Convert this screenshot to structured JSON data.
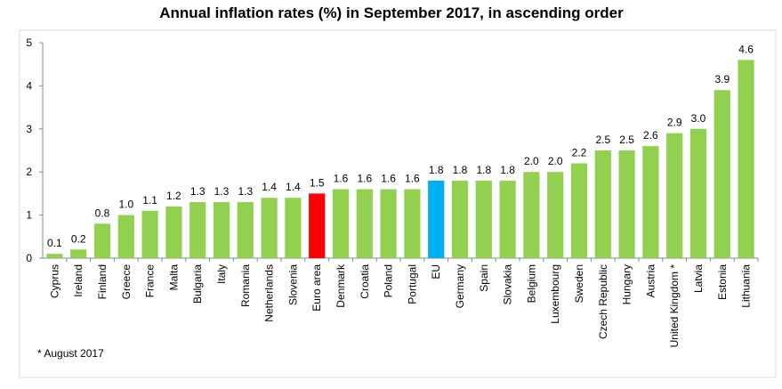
{
  "chart_data": {
    "type": "bar",
    "title": "Annual inflation rates (%) in September 2017, in ascending order",
    "categories": [
      "Cyprus",
      "Ireland",
      "Finland",
      "Greece",
      "France",
      "Malta",
      "Bulgaria",
      "Italy",
      "Romania",
      "Netherlands",
      "Slovenia",
      "Euro area",
      "Denmark",
      "Croatia",
      "Poland",
      "Portugal",
      "EU",
      "Germany",
      "Spain",
      "Slovakia",
      "Belgium",
      "Luxembourg",
      "Sweden",
      "Czech Republic",
      "Hungary",
      "Austria",
      "United Kingdom *",
      "Latvia",
      "Estonia",
      "Lithuania"
    ],
    "values": [
      0.1,
      0.2,
      0.8,
      1.0,
      1.1,
      1.2,
      1.3,
      1.3,
      1.3,
      1.4,
      1.4,
      1.5,
      1.6,
      1.6,
      1.6,
      1.6,
      1.8,
      1.8,
      1.8,
      1.8,
      2.0,
      2.0,
      2.2,
      2.5,
      2.5,
      2.6,
      2.9,
      3.0,
      3.9,
      4.6
    ],
    "value_labels": [
      "0.1",
      "0.2",
      "0.8",
      "1.0",
      "1.1",
      "1.2",
      "1.3",
      "1.3",
      "1.3",
      "1.4",
      "1.4",
      "1.5",
      "1.6",
      "1.6",
      "1.6",
      "1.6",
      "1.8",
      "1.8",
      "1.8",
      "1.8",
      "2.0",
      "2.0",
      "2.2",
      "2.5",
      "2.5",
      "2.6",
      "2.9",
      "3.0",
      "3.9",
      "4.6"
    ],
    "colors": [
      "#92d050",
      "#92d050",
      "#92d050",
      "#92d050",
      "#92d050",
      "#92d050",
      "#92d050",
      "#92d050",
      "#92d050",
      "#92d050",
      "#92d050",
      "#ff0000",
      "#92d050",
      "#92d050",
      "#92d050",
      "#92d050",
      "#00b0f0",
      "#92d050",
      "#92d050",
      "#92d050",
      "#92d050",
      "#92d050",
      "#92d050",
      "#92d050",
      "#92d050",
      "#92d050",
      "#92d050",
      "#92d050",
      "#92d050",
      "#92d050"
    ],
    "ylim": [
      0,
      5
    ],
    "yticks": [
      0,
      1,
      2,
      3,
      4,
      5
    ],
    "grid": false,
    "footnote": "* August 2017"
  }
}
